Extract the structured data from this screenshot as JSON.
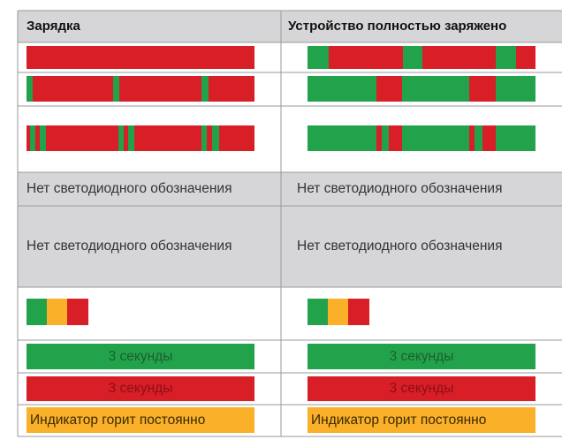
{
  "table": {
    "header": [
      "Зарядка",
      "Устройство полностью заряжено"
    ],
    "rows": [
      [
        "Нет светодиодного обозначения",
        "Нет светодиодного обозначения"
      ],
      [
        "Нет светодиодного обозначения",
        "Нет светодиодного обозначения"
      ],
      [
        "3 секунды",
        "3 секунды"
      ],
      [
        "3 секунды",
        "3 секунды"
      ],
      [
        "Индикатор горит постоянно",
        "Индикатор горит постоянно"
      ]
    ]
  }
}
